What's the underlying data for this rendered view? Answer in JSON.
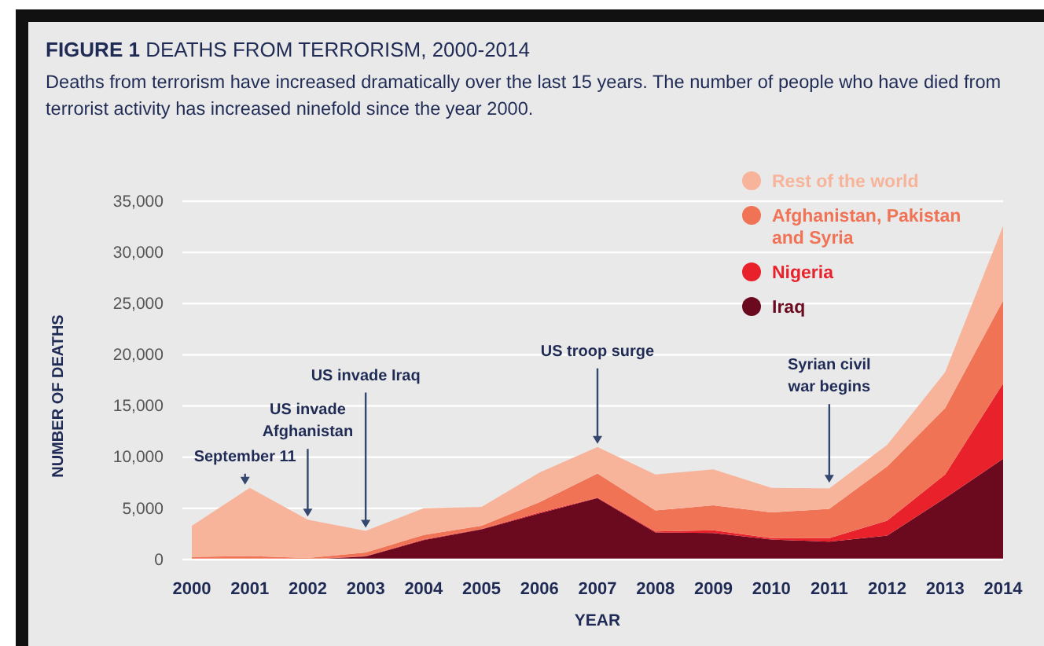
{
  "chart_data": {
    "type": "area",
    "stacked": true,
    "title": "FIGURE 1 DEATHS FROM TERRORISM, 2000-2014",
    "subtitle": "Deaths from terrorism have increased dramatically over the last 15 years. The number of people who have died from terrorist activity has increased ninefold since the year 2000.",
    "xlabel": "YEAR",
    "ylabel": "NUMBER OF DEATHS",
    "x": [
      2000,
      2001,
      2002,
      2003,
      2004,
      2005,
      2006,
      2007,
      2008,
      2009,
      2010,
      2011,
      2012,
      2013,
      2014
    ],
    "series": [
      {
        "name": "Iraq",
        "color": "#6b0a1e",
        "values": [
          0,
          0,
          0,
          300,
          1900,
          2950,
          4500,
          6000,
          2650,
          2600,
          1950,
          1750,
          2350,
          6000,
          9850
        ]
      },
      {
        "name": "Nigeria",
        "color": "#e8212b",
        "values": [
          0,
          0,
          0,
          50,
          50,
          50,
          100,
          50,
          100,
          250,
          150,
          350,
          1450,
          2300,
          7350
        ]
      },
      {
        "name": "Afghanistan, Pakistan and Syria",
        "color": "#f07356",
        "values": [
          250,
          350,
          150,
          350,
          450,
          300,
          1000,
          2350,
          2050,
          2450,
          2500,
          2850,
          5300,
          6500,
          8100
        ]
      },
      {
        "name": "Rest of the world",
        "color": "#f7b49a",
        "values": [
          3050,
          6650,
          3750,
          2100,
          2600,
          1850,
          2900,
          2600,
          3500,
          3500,
          2400,
          2000,
          2100,
          3500,
          7300
        ]
      }
    ],
    "xlim": [
      2000,
      2014
    ],
    "xticks": [
      2000,
      2001,
      2002,
      2003,
      2004,
      2005,
      2006,
      2007,
      2008,
      2009,
      2010,
      2011,
      2012,
      2013,
      2014
    ],
    "ylim": [
      0,
      35000
    ],
    "yticks": [
      {
        "value": 0,
        "label": "0"
      },
      {
        "value": 5000,
        "label": "5,000"
      },
      {
        "value": 10000,
        "label": "10,000"
      },
      {
        "value": 15000,
        "label": "15,000"
      },
      {
        "value": 20000,
        "label": "20,000"
      },
      {
        "value": 25000,
        "label": "25,000"
      },
      {
        "value": 30000,
        "label": "30,000"
      },
      {
        "value": 35000,
        "label": "35,000"
      }
    ],
    "grid": "y",
    "legend": "top right",
    "annotations": [
      {
        "text": "September 11",
        "x": 2001,
        "y": 7000
      },
      {
        "text": "US invade\nAfghanistan",
        "x": 2002,
        "y": 3900
      },
      {
        "text": "US invade Iraq",
        "x": 2003,
        "y": 2800
      },
      {
        "text": "US troop surge",
        "x": 2007,
        "y": 11000
      },
      {
        "text": "Syrian civil\nwar begins",
        "x": 2011,
        "y": 7200
      }
    ]
  }
}
